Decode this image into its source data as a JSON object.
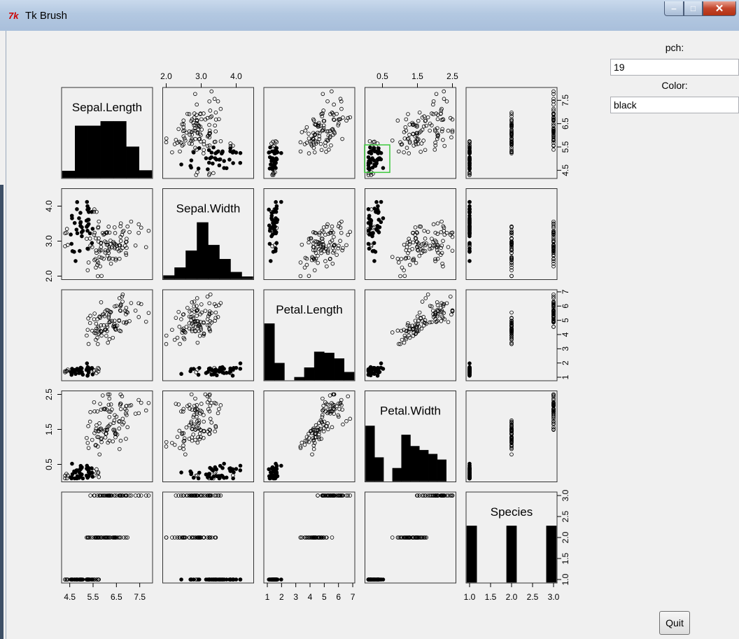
{
  "window": {
    "title": "Tk Brush",
    "icon": "tk-feather-icon"
  },
  "controls": {
    "pch_label": "pch:",
    "pch_value": "19",
    "color_label": "Color:",
    "color_value": "black",
    "quit_label": "Quit"
  },
  "colors": {
    "brush_box": "#3cc83c",
    "panel_border": "#333333"
  },
  "chart_data": {
    "type": "scatter",
    "variables": [
      "Sepal.Length",
      "Sepal.Width",
      "Petal.Length",
      "Petal.Width",
      "Species"
    ],
    "ranges": [
      [
        4.3,
        7.9
      ],
      [
        2.0,
        4.4
      ],
      [
        1.0,
        6.9
      ],
      [
        0.1,
        2.5
      ],
      [
        1.0,
        3.0
      ]
    ],
    "ticks": {
      "Sepal.Length": [
        "4.5",
        "5.5",
        "6.5",
        "7.5"
      ],
      "Sepal.Width": [
        "2.0",
        "3.0",
        "4.0"
      ],
      "Petal.Length": [
        "1",
        "2",
        "3",
        "4",
        "5",
        "6",
        "7"
      ],
      "Petal.Width": [
        "0.5",
        "1.5",
        "2.5"
      ],
      "Species": [
        "1.0",
        "1.5",
        "2.0",
        "2.5",
        "3.0"
      ]
    },
    "histograms": {
      "Sepal.Length": [
        0.12,
        0.92,
        0.92,
        1.0,
        1.0,
        0.55,
        0.13
      ],
      "Sepal.Width": [
        0.06,
        0.2,
        0.5,
        1.0,
        0.6,
        0.35,
        0.12,
        0.04
      ],
      "Petal.Length": [
        1.0,
        0.3,
        0.0,
        0.05,
        0.22,
        0.5,
        0.48,
        0.38,
        0.14
      ],
      "Petal.Width": [
        0.98,
        0.42,
        0.0,
        0.23,
        0.82,
        0.62,
        0.55,
        0.48,
        0.38,
        0.0
      ],
      "Species": [
        1,
        0,
        0,
        0,
        1,
        0,
        0,
        0,
        1
      ]
    },
    "brush_panel": {
      "row": 0,
      "col": 3,
      "x": [
        0.05,
        0.65
      ],
      "y": [
        4.5,
        5.5
      ]
    },
    "brushed_style": "filled",
    "grid": false,
    "legend": "none"
  }
}
